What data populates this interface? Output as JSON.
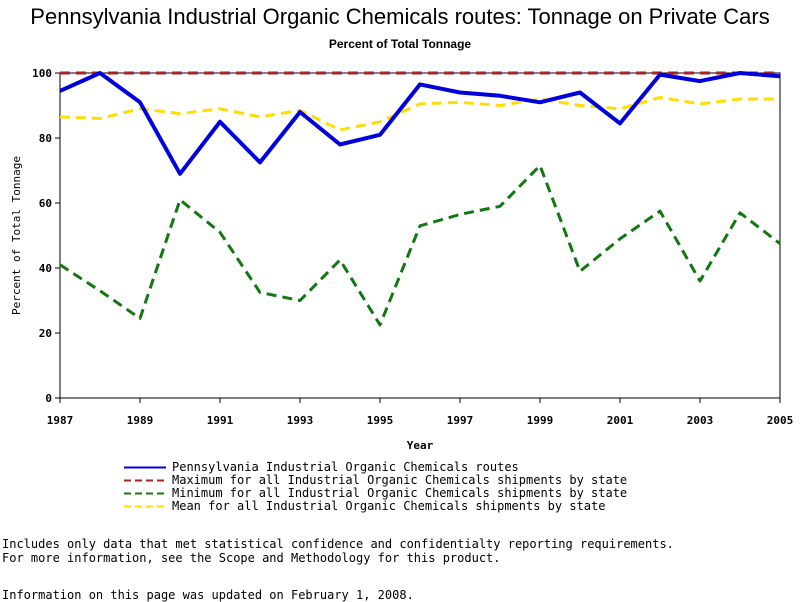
{
  "chart_data": {
    "type": "line",
    "title": "Pennsylvania Industrial Organic Chemicals routes: Tonnage on Private Cars",
    "subtitle": "Percent of Total Tonnage",
    "xlabel": "Year",
    "ylabel": "Percent of Total Tonnage",
    "xlim": [
      1987,
      2005
    ],
    "ylim": [
      0,
      100
    ],
    "x_ticks": [
      1987,
      1989,
      1991,
      1993,
      1995,
      1997,
      1999,
      2001,
      2003,
      2005
    ],
    "y_ticks": [
      0,
      20,
      40,
      60,
      80,
      100
    ],
    "grid": false,
    "legend_position": "bottom",
    "x": [
      1987,
      1988,
      1989,
      1990,
      1991,
      1992,
      1993,
      1994,
      1995,
      1996,
      1997,
      1998,
      1999,
      2000,
      2001,
      2002,
      2003,
      2004,
      2005
    ],
    "series": [
      {
        "name": "Pennsylvania Industrial Organic Chemicals routes",
        "color": "#0000dd",
        "style": "solid",
        "values": [
          94.5,
          100,
          91,
          69,
          85,
          72.5,
          88,
          78,
          81,
          96.5,
          94,
          93,
          91,
          94,
          84.5,
          99.5,
          97.5,
          100,
          99
        ]
      },
      {
        "name": "Maximum for all Industrial Organic Chemicals shipments by state",
        "color": "#aa2222",
        "style": "dashed",
        "values": [
          100,
          100,
          100,
          100,
          100,
          100,
          100,
          100,
          100,
          100,
          100,
          100,
          100,
          100,
          100,
          100,
          100,
          100,
          100
        ]
      },
      {
        "name": "Minimum for all Industrial Organic Chemicals shipments by state",
        "color": "#117711",
        "style": "dashed",
        "values": [
          41,
          33,
          24.5,
          61,
          51,
          32.5,
          30,
          42.5,
          22.5,
          53,
          56.5,
          59,
          71.5,
          39,
          49,
          57.5,
          36,
          57,
          47.5
        ]
      },
      {
        "name": "Mean for all Industrial Organic Chemicals shipments by state",
        "color": "#ffdd00",
        "style": "dashed",
        "values": [
          86.5,
          86,
          89,
          87.5,
          89,
          86.5,
          88.5,
          82.5,
          85,
          90.5,
          91,
          90,
          92,
          90,
          89,
          92.5,
          90.5,
          92,
          92
        ]
      }
    ]
  },
  "notes": {
    "line1": "Includes only data that met statistical confidence and confidentialty reporting requirements.",
    "line2": "For more information, see the Scope and Methodology for this product.",
    "updated": "Information on this page was updated on February 1, 2008."
  }
}
